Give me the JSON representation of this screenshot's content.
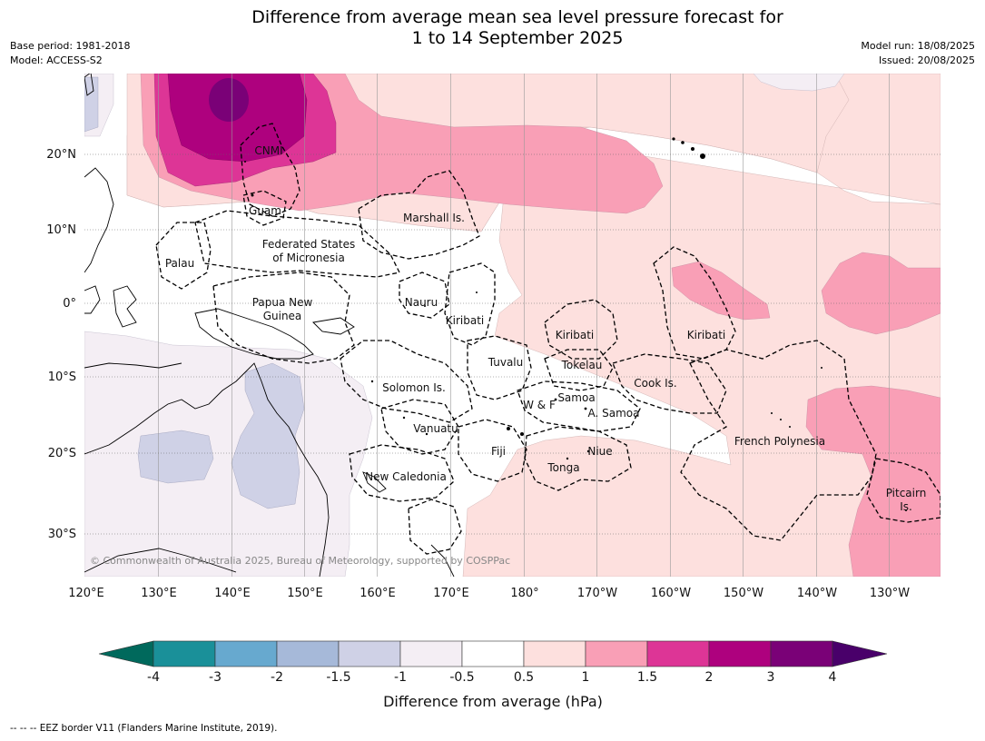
{
  "title": {
    "line1": "Difference from average mean sea level pressure forecast for",
    "line2": "1 to 14 September 2025"
  },
  "meta": {
    "base_period": "Base period: 1981-2018",
    "model": "Model: ACCESS-S2",
    "model_run": "Model run: 18/08/2025",
    "issued": "Issued: 20/08/2025"
  },
  "credit": "© Commonwealth of Australia 2025, Bureau of Meteorology, supported by COSPPac",
  "footer": "-- -- -- EEZ border V11 (Flanders Marine Institute, 2019).",
  "axes": {
    "lon_ticks": [
      "120°E",
      "130°E",
      "140°E",
      "150°E",
      "160°E",
      "170°E",
      "180°",
      "170°W",
      "160°W",
      "150°W",
      "140°W",
      "130°W"
    ],
    "lat_ticks": [
      "20°N",
      "10°N",
      "0°",
      "10°S",
      "20°S",
      "30°S"
    ]
  },
  "regions": {
    "cnmi": "CNMI",
    "guam": "Guam",
    "marshall": "Marshall Is.",
    "palau": "Palau",
    "fsm_1": "Federated States",
    "fsm_2": "of Micronesia",
    "png_1": "Papua New",
    "png_2": "Guinea",
    "nauru": "Nauru",
    "kiribati_w": "Kiribati",
    "kiribati_c": "Kiribati",
    "kiribati_e": "Kiribati",
    "tuvalu": "Tuvalu",
    "tokelau": "Tokelau",
    "cook": "Cook Is.",
    "solomon": "Solomon Is.",
    "wf": "W & F",
    "samoa": "Samoa",
    "asamoa": "A. Samoa",
    "vanuatu": "Vanuatu",
    "fiji": "Fiji",
    "niue": "Niue",
    "tonga": "Tonga",
    "newcal": "New Caledonia",
    "frpoly": "French Polynesia",
    "pitcairn_1": "Pitcairn",
    "pitcairn_2": "Is."
  },
  "colorbar": {
    "title": "Difference from average (hPa)",
    "ticks": [
      "-4",
      "-3",
      "-2",
      "-1.5",
      "-1",
      "-0.5",
      "0.5",
      "1",
      "1.5",
      "2",
      "3",
      "4"
    ],
    "colors": {
      "below_min": "#00695c",
      "bins": [
        "#1a9099",
        "#67a9cf",
        "#a6b9d9",
        "#cfd1e6",
        "#f4eef4",
        "#ffffff",
        "#fde0de",
        "#f99fb6",
        "#dd3596",
        "#ae017e",
        "#7a0177"
      ],
      "above_max": "#49006a"
    }
  }
}
